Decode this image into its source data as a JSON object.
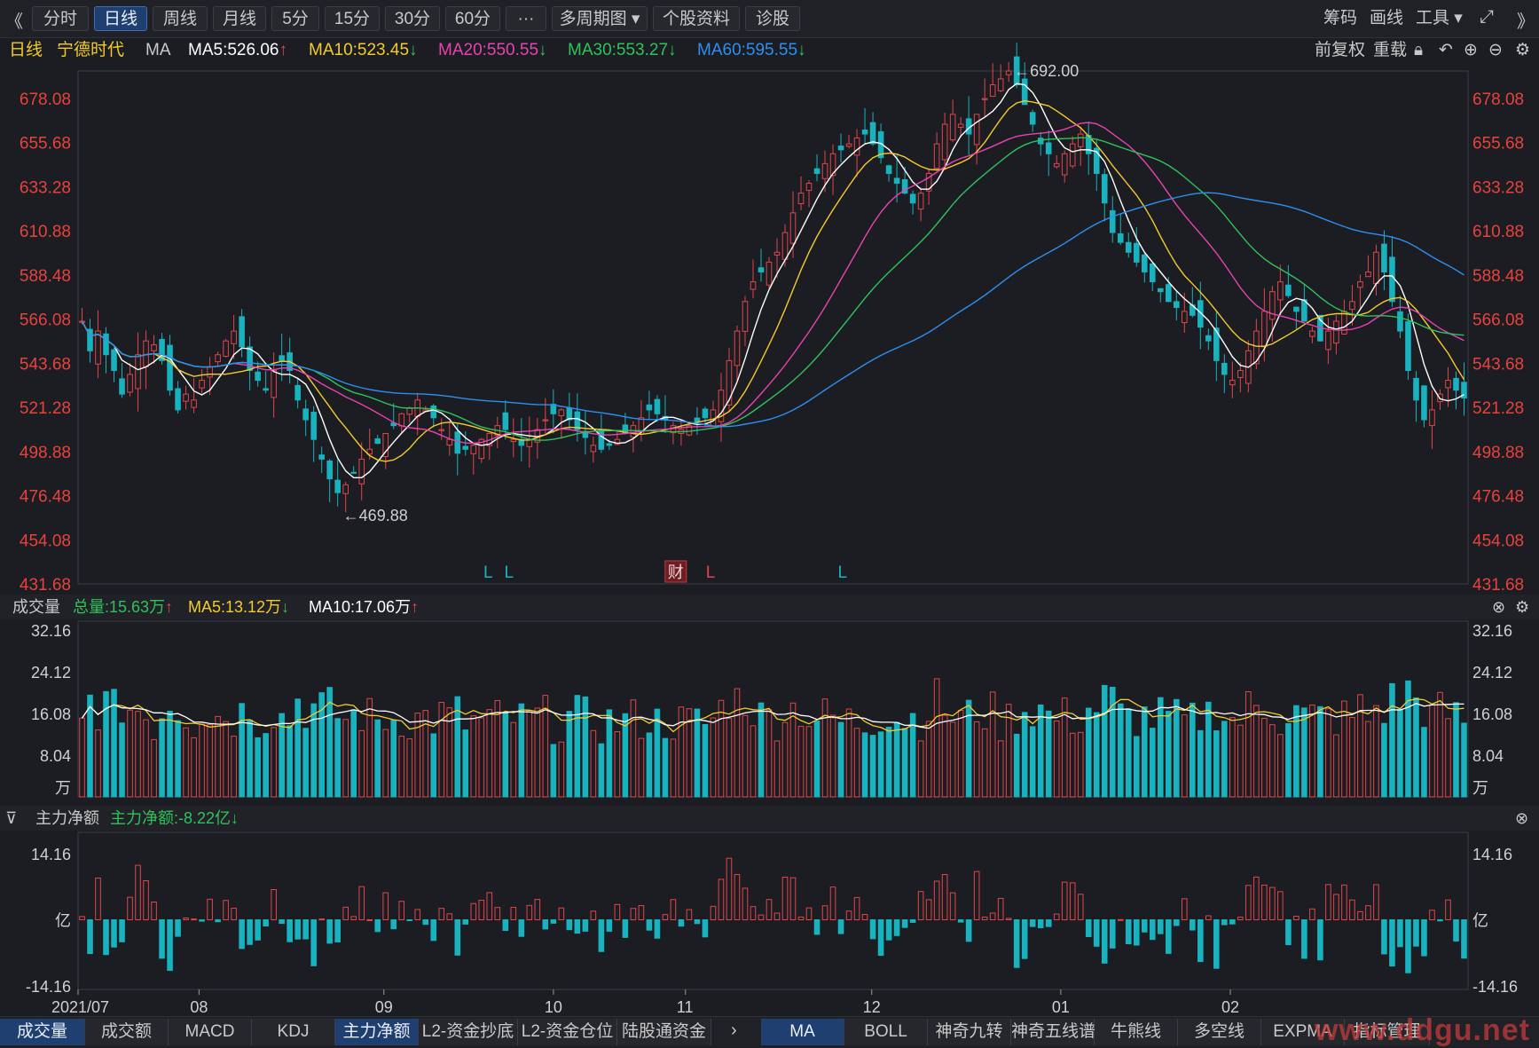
{
  "toolbar": {
    "collapse_icon": "double-chevron-left-icon",
    "tabs": [
      "分时",
      "日线",
      "周线",
      "月线",
      "5分",
      "15分",
      "30分",
      "60分",
      "···",
      "多周期图 ▾",
      "个股资料",
      "诊股"
    ],
    "active_index": 1,
    "right_items": [
      "筹码",
      "画线",
      "工具 ▾"
    ],
    "expand_icon": "fullscreen-icon",
    "next_icon": "double-chevron-right-icon"
  },
  "info": {
    "period": "日线",
    "stock_name": "宁德时代",
    "indicator": "MA",
    "ma5": "MA5:526.06",
    "ma10": "MA10:523.45",
    "ma20": "MA20:550.55",
    "ma30": "MA30:553.27",
    "ma60": "MA60:595.55",
    "ma5_dir": "↑",
    "ma10_dir": "↓",
    "ma20_dir": "↓",
    "ma30_dir": "↓",
    "ma60_dir": "↓",
    "right": [
      "前复权",
      "重载"
    ]
  },
  "colors": {
    "up": "#e0464b",
    "down": "#18b3bf",
    "ma5": "#ffffff",
    "ma10": "#f3cb2d",
    "ma20": "#e743b0",
    "ma30": "#2fc25a",
    "ma60": "#2d8ff0",
    "axis_text": "#e8423c",
    "grid": "#3a3d45"
  },
  "price_axis": [
    "678.08",
    "655.68",
    "633.28",
    "610.88",
    "588.48",
    "566.08",
    "543.68",
    "521.28",
    "498.88",
    "476.48",
    "454.08",
    "431.68"
  ],
  "annotations": {
    "high": "←692.00",
    "low": "←469.88"
  },
  "event_marks": [
    "L",
    "L",
    "财",
    "L",
    "L"
  ],
  "volume": {
    "title": "成交量",
    "total": "总量:15.63万",
    "total_dir": "↑",
    "ma5": "MA5:13.12万",
    "ma5_dir": "↓",
    "ma10": "MA10:17.06万",
    "ma10_dir": "↑",
    "axis": [
      "32.16",
      "24.12",
      "16.08",
      "8.04"
    ],
    "unit": "万"
  },
  "moneyflow": {
    "title": "主力净额",
    "value": "主力净额:-8.22亿",
    "value_dir": "↓",
    "axis": [
      "14.16",
      "亿",
      "-14.16"
    ]
  },
  "x_axis": [
    "2021/07",
    "08",
    "09",
    "10",
    "11",
    "12",
    "01",
    "02"
  ],
  "bottom_tabs_left": [
    "成交量",
    "成交额",
    "MACD",
    "KDJ",
    "主力净额",
    "L2-资金抄底",
    "L2-资金仓位",
    "陆股通资金"
  ],
  "bottom_tabs_left_active": [
    0,
    4
  ],
  "bottom_tabs_right": [
    "MA",
    "BOLL",
    "神奇九转",
    "神奇五线谱",
    "牛熊线",
    "多空线",
    "EXPMA",
    "指标管理"
  ],
  "bottom_tabs_right_active": 0,
  "watermark": "www.ddgu.net",
  "chart_data": {
    "type": "candlestick",
    "title": "宁德时代 日线",
    "ylim": [
      431.68,
      692.0
    ],
    "x_ticks": [
      "2021/07",
      "08",
      "09",
      "10",
      "11",
      "12",
      "01",
      "02"
    ],
    "high_label": 692.0,
    "low_label": 469.88,
    "last_close": 526.06,
    "ma_last": {
      "MA5": 526.06,
      "MA10": 523.45,
      "MA20": 550.55,
      "MA30": 553.27,
      "MA60": 595.55
    },
    "close_path": [
      565,
      550,
      560,
      548,
      540,
      528,
      538,
      548,
      555,
      553,
      545,
      530,
      520,
      528,
      525,
      535,
      542,
      548,
      555,
      560,
      552,
      540,
      535,
      530,
      540,
      545,
      540,
      525,
      515,
      505,
      495,
      485,
      478,
      482,
      488,
      495,
      500,
      503,
      508,
      512,
      518,
      521,
      525,
      520,
      516,
      510,
      505,
      498,
      500,
      502,
      505,
      508,
      512,
      510,
      505,
      502,
      505,
      510,
      515,
      518,
      520,
      515,
      510,
      506,
      502,
      500,
      502,
      505,
      508,
      512,
      516,
      520,
      518,
      515,
      512,
      510,
      512,
      514,
      516,
      520,
      530,
      545,
      560,
      575,
      585,
      590,
      595,
      600,
      610,
      620,
      630,
      635,
      640,
      645,
      650,
      652,
      655,
      658,
      660,
      655,
      648,
      640,
      635,
      630,
      625,
      630,
      640,
      655,
      665,
      670,
      665,
      660,
      670,
      678,
      685,
      688,
      692,
      685,
      675,
      665,
      655,
      650,
      645,
      650,
      655,
      660,
      650,
      640,
      625,
      610,
      605,
      600,
      595,
      590,
      585,
      580,
      575,
      572,
      570,
      568,
      562,
      555,
      545,
      538,
      535,
      540,
      550,
      560,
      570,
      580,
      585,
      578,
      570,
      565,
      560,
      555,
      560,
      565,
      570,
      575,
      585,
      590,
      600,
      590,
      575,
      560,
      540,
      525,
      515,
      520,
      528,
      535,
      530,
      526
    ],
    "volume_unit": "万",
    "volume_axis_max": 32.16,
    "moneyflow_unit": "亿",
    "moneyflow_range": [
      -14.16,
      14.16
    ],
    "moneyflow_last": -8.22
  }
}
